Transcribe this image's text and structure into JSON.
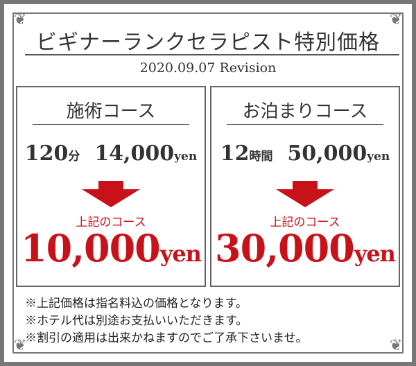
{
  "title": "ビギナーランクセラピスト特別価格",
  "revision": "2020.09.07 Revision",
  "courses": [
    {
      "name": "施術コース",
      "duration_num": "120",
      "duration_unit": "分",
      "price": "14,000",
      "price_unit": "yen",
      "label": "上記のコース",
      "new_price": "10,000",
      "new_unit": "yen"
    },
    {
      "name": "お泊まりコース",
      "duration_num": "12",
      "duration_unit": "時間",
      "price": "50,000",
      "price_unit": "yen",
      "label": "上記のコース",
      "new_price": "30,000",
      "new_unit": "yen"
    }
  ],
  "notes": [
    "※上記価格は指名料込の価格となります。",
    "※ホテル代は別途お支払いいただきます。",
    "※割引の適用は出来かねますのでご了承下さいませ。"
  ],
  "colors": {
    "accent": "#c8121a",
    "frame": "#777777"
  },
  "icons": [
    "corner-ornament-icon",
    "down-arrow-icon"
  ]
}
